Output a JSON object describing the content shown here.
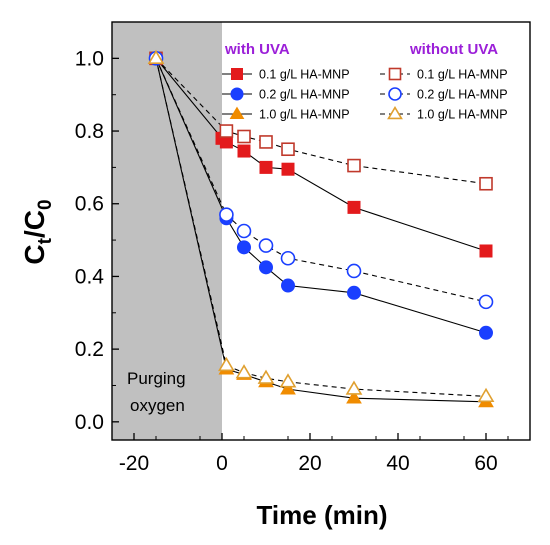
{
  "chart_data": {
    "type": "line",
    "xlabel": "Time (min)",
    "ylabel": {
      "main": "C",
      "sub1": "t",
      "sep": "/C",
      "sub2": "0"
    },
    "xlim": [
      -25,
      70
    ],
    "ylim": [
      -0.05,
      1.1
    ],
    "xticks": [
      -20,
      0,
      20,
      40,
      60
    ],
    "yticks": [
      0.0,
      0.2,
      0.4,
      0.6,
      0.8,
      1.0
    ],
    "ytick_labels": [
      "0.0",
      "0.2",
      "0.4",
      "0.6",
      "0.8",
      "1.0"
    ],
    "grid": false,
    "shaded_region": {
      "x": [
        -25,
        0
      ],
      "color": "#c0c0c0",
      "label_line1": "Purging",
      "label_line2": "oxygen"
    },
    "legend_groups": [
      {
        "title": "with UVA",
        "title_color": "#9b1fd8"
      },
      {
        "title": "without UVA",
        "title_color": "#9b1fd8"
      }
    ],
    "series": [
      {
        "name": "0.1 g/L HA-MNP",
        "group": 0,
        "color": "#e31a1c",
        "marker": "square",
        "filled": true,
        "dashed": false,
        "x": [
          -15,
          0,
          1,
          5,
          10,
          15,
          30,
          60
        ],
        "y": [
          1.0,
          0.78,
          0.77,
          0.745,
          0.7,
          0.695,
          0.59,
          0.47
        ]
      },
      {
        "name": "0.2 g/L HA-MNP",
        "group": 0,
        "color": "#1a3fff",
        "marker": "circle",
        "filled": true,
        "dashed": false,
        "x": [
          -15,
          1,
          5,
          10,
          15,
          30,
          60
        ],
        "y": [
          1.0,
          0.56,
          0.48,
          0.425,
          0.375,
          0.355,
          0.245
        ]
      },
      {
        "name": "1.0 g/L HA-MNP",
        "group": 0,
        "color": "#f08c00",
        "marker": "triangle",
        "filled": true,
        "dashed": false,
        "x": [
          -15,
          1,
          5,
          10,
          15,
          30,
          60
        ],
        "y": [
          1.0,
          0.145,
          0.13,
          0.11,
          0.09,
          0.065,
          0.055
        ]
      },
      {
        "name": "0.1 g/L HA-MNP",
        "group": 1,
        "color": "#c0392b",
        "marker": "square",
        "filled": false,
        "dashed": true,
        "x": [
          -15,
          1,
          5,
          10,
          15,
          30,
          60
        ],
        "y": [
          1.0,
          0.8,
          0.785,
          0.77,
          0.75,
          0.705,
          0.655
        ]
      },
      {
        "name": "0.2 g/L HA-MNP",
        "group": 1,
        "color": "#1a3fff",
        "marker": "circle",
        "filled": false,
        "dashed": true,
        "x": [
          -15,
          1,
          5,
          10,
          15,
          30,
          60
        ],
        "y": [
          1.0,
          0.57,
          0.525,
          0.485,
          0.45,
          0.415,
          0.33
        ]
      },
      {
        "name": "1.0 g/L HA-MNP",
        "group": 1,
        "color": "#e0a030",
        "marker": "triangle",
        "filled": false,
        "dashed": true,
        "x": [
          -15,
          1,
          5,
          10,
          15,
          30,
          60
        ],
        "y": [
          1.0,
          0.155,
          0.135,
          0.12,
          0.11,
          0.09,
          0.07
        ]
      }
    ]
  }
}
